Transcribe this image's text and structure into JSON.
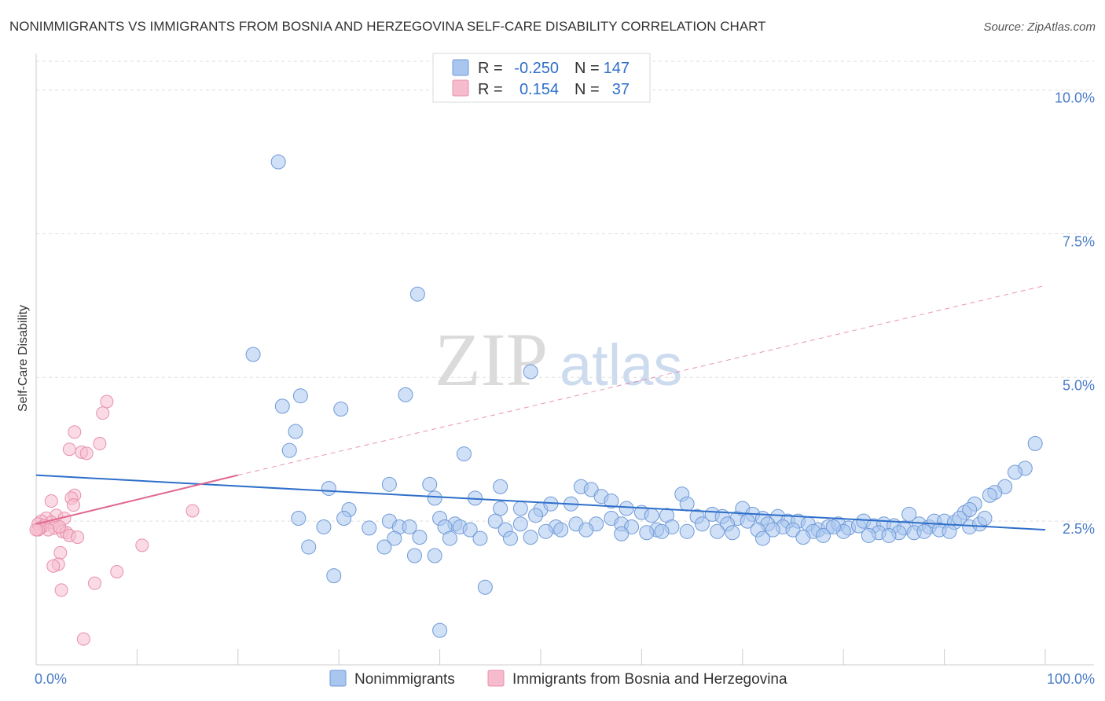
{
  "chart_data": {
    "type": "scatter",
    "title": "NONIMMIGRANTS VS IMMIGRANTS FROM BOSNIA AND HERZEGOVINA SELF-CARE DISABILITY CORRELATION CHART",
    "source": "Source: ZipAtlas.com",
    "ylabel": "Self-Care Disability",
    "xlim": [
      0,
      100
    ],
    "ylim": [
      0,
      10.5
    ],
    "x_tick_labels": [
      "0.0%",
      "100.0%"
    ],
    "y_ticks": [
      2.5,
      5.0,
      7.5,
      10.0
    ],
    "y_tick_labels": [
      "2.5%",
      "5.0%",
      "7.5%",
      "10.0%"
    ],
    "watermark": {
      "part1": "ZIP",
      "part2": "atlas"
    },
    "colors": {
      "blue_fill": "#a9c6ef",
      "blue_stroke": "#6f9ad8",
      "blue_line": "#2f6fc9",
      "pink_fill": "#f6bccd",
      "pink_stroke": "#e890ac",
      "pink_line": "#e06890"
    },
    "legend": {
      "rows": [
        {
          "r_label": "R =",
          "r_value": "-0.250",
          "n_label": "N =",
          "n_value": "147"
        },
        {
          "r_label": "R =",
          "r_value": "0.154",
          "n_label": "N =",
          "n_value": "37"
        }
      ]
    },
    "series": [
      {
        "name": "Nonimmigrants",
        "trend": {
          "x": [
            0,
            100
          ],
          "y": [
            3.3,
            2.35
          ]
        },
        "points": [
          [
            24.0,
            8.75
          ],
          [
            37.8,
            6.45
          ],
          [
            21.5,
            5.4
          ],
          [
            49.0,
            5.1
          ],
          [
            26.2,
            4.68
          ],
          [
            36.6,
            4.7
          ],
          [
            24.4,
            4.5
          ],
          [
            30.2,
            4.45
          ],
          [
            25.7,
            4.06
          ],
          [
            25.1,
            3.73
          ],
          [
            42.4,
            3.67
          ],
          [
            99.0,
            3.85
          ],
          [
            98.0,
            3.42
          ],
          [
            97.0,
            3.35
          ],
          [
            29.0,
            3.07
          ],
          [
            35.0,
            3.14
          ],
          [
            39.0,
            3.14
          ],
          [
            46.0,
            3.1
          ],
          [
            54.0,
            3.1
          ],
          [
            55.0,
            3.05
          ],
          [
            39.5,
            2.9
          ],
          [
            43.5,
            2.9
          ],
          [
            56.0,
            2.93
          ],
          [
            57.0,
            2.85
          ],
          [
            64.0,
            2.97
          ],
          [
            64.5,
            2.8
          ],
          [
            96.0,
            3.1
          ],
          [
            95.0,
            3.0
          ],
          [
            94.5,
            2.95
          ],
          [
            93.0,
            2.8
          ],
          [
            92.0,
            2.65
          ],
          [
            92.5,
            2.7
          ],
          [
            31.0,
            2.7
          ],
          [
            46.0,
            2.72
          ],
          [
            48.0,
            2.72
          ],
          [
            50.0,
            2.7
          ],
          [
            51.0,
            2.8
          ],
          [
            53.0,
            2.8
          ],
          [
            49.5,
            2.6
          ],
          [
            58.5,
            2.72
          ],
          [
            60.0,
            2.65
          ],
          [
            61.0,
            2.6
          ],
          [
            62.5,
            2.6
          ],
          [
            65.5,
            2.58
          ],
          [
            67.0,
            2.62
          ],
          [
            68.0,
            2.58
          ],
          [
            69.5,
            2.55
          ],
          [
            70.0,
            2.72
          ],
          [
            71.0,
            2.62
          ],
          [
            72.0,
            2.55
          ],
          [
            73.5,
            2.58
          ],
          [
            74.5,
            2.5
          ],
          [
            30.5,
            2.55
          ],
          [
            35.0,
            2.5
          ],
          [
            40.0,
            2.55
          ],
          [
            41.5,
            2.45
          ],
          [
            45.5,
            2.5
          ],
          [
            48.0,
            2.45
          ],
          [
            51.5,
            2.4
          ],
          [
            53.5,
            2.45
          ],
          [
            55.5,
            2.45
          ],
          [
            57.0,
            2.55
          ],
          [
            58.0,
            2.45
          ],
          [
            59.0,
            2.4
          ],
          [
            61.5,
            2.35
          ],
          [
            63.0,
            2.4
          ],
          [
            66.0,
            2.45
          ],
          [
            68.5,
            2.45
          ],
          [
            70.5,
            2.5
          ],
          [
            72.5,
            2.45
          ],
          [
            74.0,
            2.4
          ],
          [
            75.5,
            2.5
          ],
          [
            76.5,
            2.45
          ],
          [
            77.5,
            2.35
          ],
          [
            78.5,
            2.4
          ],
          [
            79.5,
            2.45
          ],
          [
            80.5,
            2.38
          ],
          [
            81.5,
            2.42
          ],
          [
            82.0,
            2.5
          ],
          [
            83.0,
            2.42
          ],
          [
            84.0,
            2.45
          ],
          [
            85.0,
            2.42
          ],
          [
            86.0,
            2.38
          ],
          [
            86.5,
            2.62
          ],
          [
            87.5,
            2.45
          ],
          [
            88.5,
            2.4
          ],
          [
            89.0,
            2.5
          ],
          [
            90.0,
            2.5
          ],
          [
            91.0,
            2.48
          ],
          [
            91.5,
            2.55
          ],
          [
            26.0,
            2.55
          ],
          [
            28.5,
            2.4
          ],
          [
            33.0,
            2.38
          ],
          [
            36.0,
            2.4
          ],
          [
            37.0,
            2.4
          ],
          [
            40.5,
            2.4
          ],
          [
            42.0,
            2.4
          ],
          [
            43.0,
            2.35
          ],
          [
            46.5,
            2.35
          ],
          [
            50.5,
            2.32
          ],
          [
            52.0,
            2.35
          ],
          [
            54.5,
            2.35
          ],
          [
            60.5,
            2.3
          ],
          [
            62.0,
            2.32
          ],
          [
            64.5,
            2.32
          ],
          [
            67.5,
            2.32
          ],
          [
            71.5,
            2.35
          ],
          [
            73.0,
            2.35
          ],
          [
            75.0,
            2.35
          ],
          [
            77.0,
            2.32
          ],
          [
            80.0,
            2.32
          ],
          [
            83.5,
            2.3
          ],
          [
            85.5,
            2.3
          ],
          [
            87.0,
            2.3
          ],
          [
            88.0,
            2.32
          ],
          [
            89.5,
            2.35
          ],
          [
            90.5,
            2.32
          ],
          [
            92.5,
            2.4
          ],
          [
            93.5,
            2.45
          ],
          [
            94.0,
            2.55
          ],
          [
            35.5,
            2.2
          ],
          [
            38.0,
            2.22
          ],
          [
            41.0,
            2.2
          ],
          [
            44.0,
            2.2
          ],
          [
            47.0,
            2.2
          ],
          [
            49.0,
            2.22
          ],
          [
            58.0,
            2.28
          ],
          [
            69.0,
            2.3
          ],
          [
            72.0,
            2.2
          ],
          [
            76.0,
            2.22
          ],
          [
            78.0,
            2.25
          ],
          [
            82.5,
            2.25
          ],
          [
            84.5,
            2.25
          ],
          [
            27.0,
            2.05
          ],
          [
            34.5,
            2.05
          ],
          [
            37.5,
            1.9
          ],
          [
            39.5,
            1.9
          ],
          [
            29.5,
            1.55
          ],
          [
            44.5,
            1.35
          ],
          [
            40.0,
            0.6
          ],
          [
            79.0,
            2.4
          ]
        ]
      },
      {
        "name": "Immigrants from Bosnia and Herzegovina",
        "trend": {
          "x": [
            0,
            20
          ],
          "y": [
            2.45,
            3.3
          ]
        },
        "trend_ext": {
          "x": [
            20,
            100
          ],
          "y": [
            3.3,
            6.6
          ]
        },
        "points": [
          [
            7.0,
            4.58
          ],
          [
            6.6,
            4.38
          ],
          [
            3.8,
            4.05
          ],
          [
            6.3,
            3.85
          ],
          [
            3.3,
            3.75
          ],
          [
            4.5,
            3.7
          ],
          [
            5.0,
            3.68
          ],
          [
            3.8,
            2.95
          ],
          [
            3.5,
            2.9
          ],
          [
            1.5,
            2.85
          ],
          [
            3.7,
            2.78
          ],
          [
            15.5,
            2.68
          ],
          [
            2.0,
            2.6
          ],
          [
            2.8,
            2.55
          ],
          [
            1.0,
            2.55
          ],
          [
            0.5,
            2.5
          ],
          [
            1.5,
            2.48
          ],
          [
            0.2,
            2.45
          ],
          [
            0.8,
            2.42
          ],
          [
            1.8,
            2.38
          ],
          [
            1.2,
            2.35
          ],
          [
            0.4,
            2.38
          ],
          [
            0.2,
            2.35
          ],
          [
            2.6,
            2.32
          ],
          [
            3.0,
            2.3
          ],
          [
            3.3,
            2.25
          ],
          [
            4.1,
            2.22
          ],
          [
            10.5,
            2.08
          ],
          [
            2.4,
            1.95
          ],
          [
            2.2,
            1.75
          ],
          [
            1.7,
            1.72
          ],
          [
            8.0,
            1.62
          ],
          [
            5.8,
            1.42
          ],
          [
            2.5,
            1.3
          ],
          [
            4.7,
            0.45
          ],
          [
            0.0,
            2.35
          ],
          [
            2.3,
            2.4
          ]
        ]
      }
    ]
  }
}
